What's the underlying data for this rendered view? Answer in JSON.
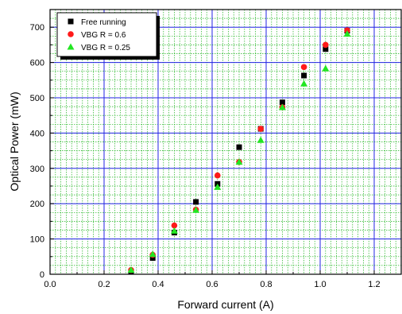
{
  "chart_data": {
    "type": "scatter",
    "xlabel": "Forward current (A)",
    "ylabel": "Optical Power (mW)",
    "xlim": [
      0.0,
      1.3
    ],
    "ylim": [
      0,
      750
    ],
    "x_ticks": [
      "0.0",
      "0.2",
      "0.4",
      "0.6",
      "0.8",
      "1.0",
      "1.2"
    ],
    "y_ticks": [
      "0",
      "100",
      "200",
      "300",
      "400",
      "500",
      "600",
      "700"
    ],
    "grid": true,
    "major_grid_color": "#2323e6",
    "minor_grid_color": "#1eb41e",
    "plot_background": "#ffffff",
    "legend_position": "top-left",
    "series": [
      {
        "name": "Free running",
        "marker": "square",
        "color": "#000000",
        "x": [
          0.3,
          0.38,
          0.46,
          0.54,
          0.62,
          0.7,
          0.78,
          0.86,
          0.94,
          1.02,
          1.1
        ],
        "y": [
          8,
          46,
          118,
          205,
          256,
          360,
          412,
          487,
          563,
          638,
          690
        ]
      },
      {
        "name": "VBG R = 0.6",
        "marker": "circle",
        "color": "#ff1a1a",
        "x": [
          0.3,
          0.38,
          0.46,
          0.54,
          0.62,
          0.7,
          0.78,
          0.86,
          0.94,
          1.02,
          1.1
        ],
        "y": [
          12,
          55,
          138,
          183,
          280,
          318,
          412,
          473,
          587,
          650,
          691
        ]
      },
      {
        "name": "VBG R = 0.25",
        "marker": "triangle",
        "color": "#22e622",
        "x": [
          0.3,
          0.38,
          0.46,
          0.54,
          0.62,
          0.7,
          0.78,
          0.86,
          0.94,
          1.02,
          1.1
        ],
        "y": [
          12,
          57,
          123,
          182,
          247,
          318,
          380,
          473,
          540,
          583,
          681
        ]
      }
    ]
  }
}
